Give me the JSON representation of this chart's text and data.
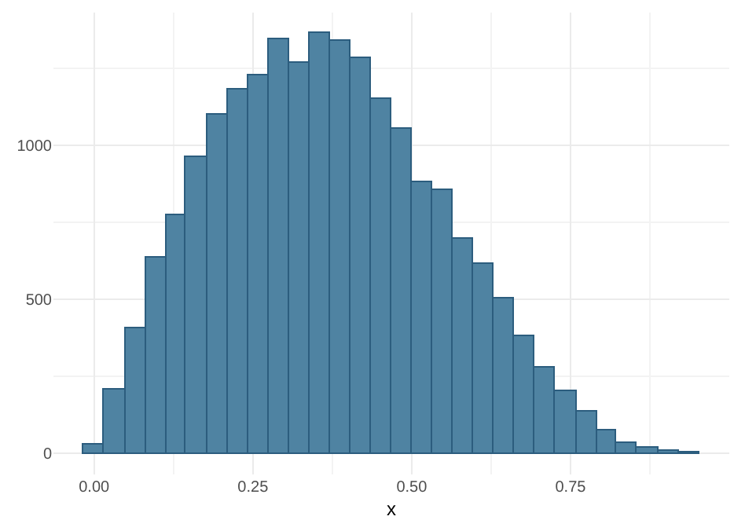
{
  "chart_data": {
    "type": "histogram",
    "xlabel": "x",
    "bins": [
      -0.016,
      0.016,
      0.049,
      0.081,
      0.113,
      0.145,
      0.178,
      0.21,
      0.242,
      0.275,
      0.307,
      0.339,
      0.371,
      0.404,
      0.436,
      0.468,
      0.5,
      0.533,
      0.565,
      0.597,
      0.63,
      0.662,
      0.694,
      0.726,
      0.759,
      0.791,
      0.823,
      0.855,
      0.888,
      0.92,
      0.952
    ],
    "values": [
      27,
      209,
      405,
      636,
      776,
      961,
      1098,
      1180,
      1226,
      1347,
      1270,
      1364,
      1339,
      1285,
      1152,
      1052,
      879,
      855,
      697,
      618,
      502,
      383,
      277,
      202,
      135,
      77,
      32,
      20,
      8,
      3
    ],
    "color": "#4f83a2",
    "xlim": [
      -0.064,
      1.0
    ],
    "ylim": [
      -68,
      1432
    ],
    "xticks": [
      {
        "value": 0,
        "label": "0.00"
      },
      0.25,
      {
        "value": 0.5,
        "label": "0.50"
      },
      0.75
    ],
    "yticks": [
      0,
      500,
      1000
    ],
    "grid": true
  }
}
